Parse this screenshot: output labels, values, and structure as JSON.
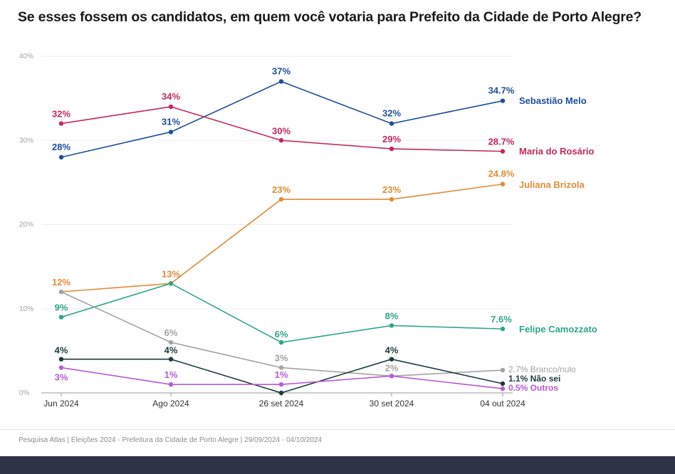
{
  "title": "Se esses fossem os candidatos, em quem você votaria para Prefeito da Cidade de Porto Alegre?",
  "source": "Pesquisa Atlas  |  Eleições 2024 - Prefeitura da Cidade de Porto Alegre  |  29/09/2024 - 04/10/2024",
  "chart_data": {
    "type": "line",
    "title": "Se esses fossem os candidatos, em quem você votaria para Prefeito da Cidade de Porto Alegre?",
    "categories": [
      "Jun 2024",
      "Ago 2024",
      "26 set 2024",
      "30 set 2024",
      "04 out 2024"
    ],
    "y_ticks": [
      "0%",
      "10%",
      "20%",
      "30%",
      "40%"
    ],
    "ylim": [
      0,
      40
    ],
    "grid": true,
    "legend": "end-of-line labels, right",
    "series": [
      {
        "name": "Sebastião Melo",
        "end_label": "Sebastião Melo",
        "color": "#1f4e9c",
        "values": [
          28,
          31,
          37,
          32,
          34.7
        ],
        "labels": [
          "28%",
          "31%",
          "37%",
          "32%",
          "34.7%"
        ]
      },
      {
        "name": "Maria do Rosário",
        "end_label": "Maria do Rosário",
        "color": "#c2285a",
        "values": [
          32,
          34,
          30,
          29,
          28.7
        ],
        "labels": [
          "32%",
          "34%",
          "30%",
          "29%",
          "28.7%"
        ]
      },
      {
        "name": "Juliana Brizola",
        "end_label": "Juliana Brizola",
        "color": "#e08c3a",
        "values": [
          12,
          13,
          23,
          23,
          24.8
        ],
        "labels": [
          "12%",
          "13%",
          "23%",
          "23%",
          "24.8%"
        ]
      },
      {
        "name": "Felipe Camozzato",
        "end_label": "Felipe Camozzato",
        "color": "#2fa58a",
        "values": [
          9,
          13,
          6,
          8,
          7.6
        ],
        "labels": [
          "9%",
          "",
          "6%",
          "8%",
          "7.6%"
        ]
      },
      {
        "name": "Branco/nulo",
        "end_label": "2.7% Branco/nulo",
        "color": "#a3a3a3",
        "values": [
          12,
          6,
          3,
          2,
          2.7
        ],
        "labels": [
          "",
          "6%",
          "3%",
          "2%",
          ""
        ]
      },
      {
        "name": "Não sei",
        "end_label": "1.1% Não sei",
        "color": "#1d3a3a",
        "values": [
          4,
          4,
          0,
          4,
          1.1
        ],
        "labels": [
          "4%",
          "4%",
          "",
          "4%",
          ""
        ]
      },
      {
        "name": "Outros",
        "end_label": "0.5% Outros",
        "color": "#b55bd6",
        "values": [
          3,
          1,
          1,
          2,
          0.5
        ],
        "labels": [
          "3%",
          "1%",
          "1%",
          "",
          ""
        ]
      }
    ]
  }
}
